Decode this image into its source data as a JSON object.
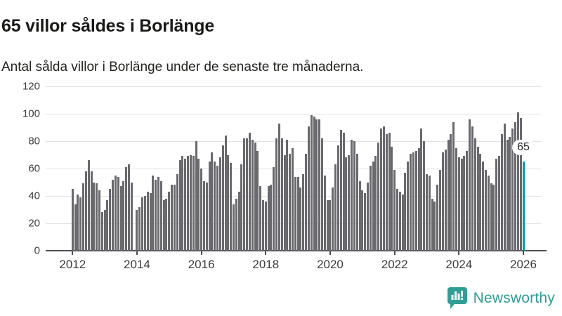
{
  "header": {
    "title": "65 villor såldes i Borlänge",
    "subtitle": "Antal sålda villor i Borlänge under de senaste tre månaderna."
  },
  "chart_data": {
    "type": "bar",
    "title": "65 villor såldes i Borlänge",
    "subtitle": "Antal sålda villor i Borlänge under de senaste tre månaderna.",
    "xlabel": "",
    "ylabel": "",
    "ylim": [
      0,
      120
    ],
    "grid": true,
    "y_tick_labels": [
      "0",
      "20",
      "40",
      "60",
      "80",
      "100",
      "120"
    ],
    "y_ticks": [
      0,
      20,
      40,
      60,
      80,
      100,
      120
    ],
    "x_tick_years": [
      2012,
      2014,
      2016,
      2018,
      2020,
      2022,
      2024,
      2026
    ],
    "start_month": "2012-01",
    "frequency": "monthly",
    "bar_color": "#69696e",
    "highlight": {
      "index": 168,
      "value": 65,
      "label": "65",
      "color": "#009aa1"
    },
    "values": [
      45,
      34,
      41,
      39,
      49,
      58,
      66,
      58,
      50,
      49,
      44,
      28,
      30,
      37,
      45,
      52,
      55,
      54,
      47,
      51,
      61,
      63,
      50,
      null,
      30,
      32,
      39,
      40,
      43,
      42,
      55,
      52,
      54,
      51,
      37,
      38,
      43,
      48,
      48,
      56,
      66,
      69,
      67,
      69,
      70,
      69,
      80,
      67,
      60,
      51,
      50,
      65,
      72,
      65,
      62,
      68,
      77,
      84,
      70,
      64,
      34,
      38,
      43,
      63,
      82,
      82,
      86,
      81,
      79,
      73,
      47,
      37,
      36,
      47,
      48,
      61,
      82,
      93,
      82,
      70,
      81,
      71,
      75,
      54,
      54,
      46,
      56,
      71,
      91,
      99,
      98,
      96,
      96,
      82,
      55,
      37,
      37,
      46,
      63,
      77,
      88,
      86,
      68,
      70,
      81,
      80,
      71,
      51,
      44,
      42,
      50,
      62,
      65,
      69,
      79,
      89,
      91,
      85,
      86,
      76,
      59,
      45,
      43,
      41,
      57,
      65,
      71,
      72,
      73,
      75,
      89,
      80,
      56,
      55,
      38,
      36,
      48,
      59,
      72,
      74,
      81,
      85,
      94,
      75,
      68,
      67,
      69,
      73,
      96,
      91,
      82,
      76,
      71,
      65,
      59,
      55,
      49,
      48,
      67,
      69,
      85,
      93,
      81,
      83,
      89,
      94,
      101,
      97,
      65
    ]
  },
  "footer": {
    "brand": "Newsworthy",
    "brand_color": "#2f9e96"
  },
  "colors": {
    "background": "#ffffff",
    "bar_gray": "#69696e",
    "bar_highlight": "#009aa1",
    "gridline": "#e2e2e2",
    "axis": "#4f4f54",
    "text_dark": "#1a1a18",
    "tick_label": "#3c3c3c"
  }
}
